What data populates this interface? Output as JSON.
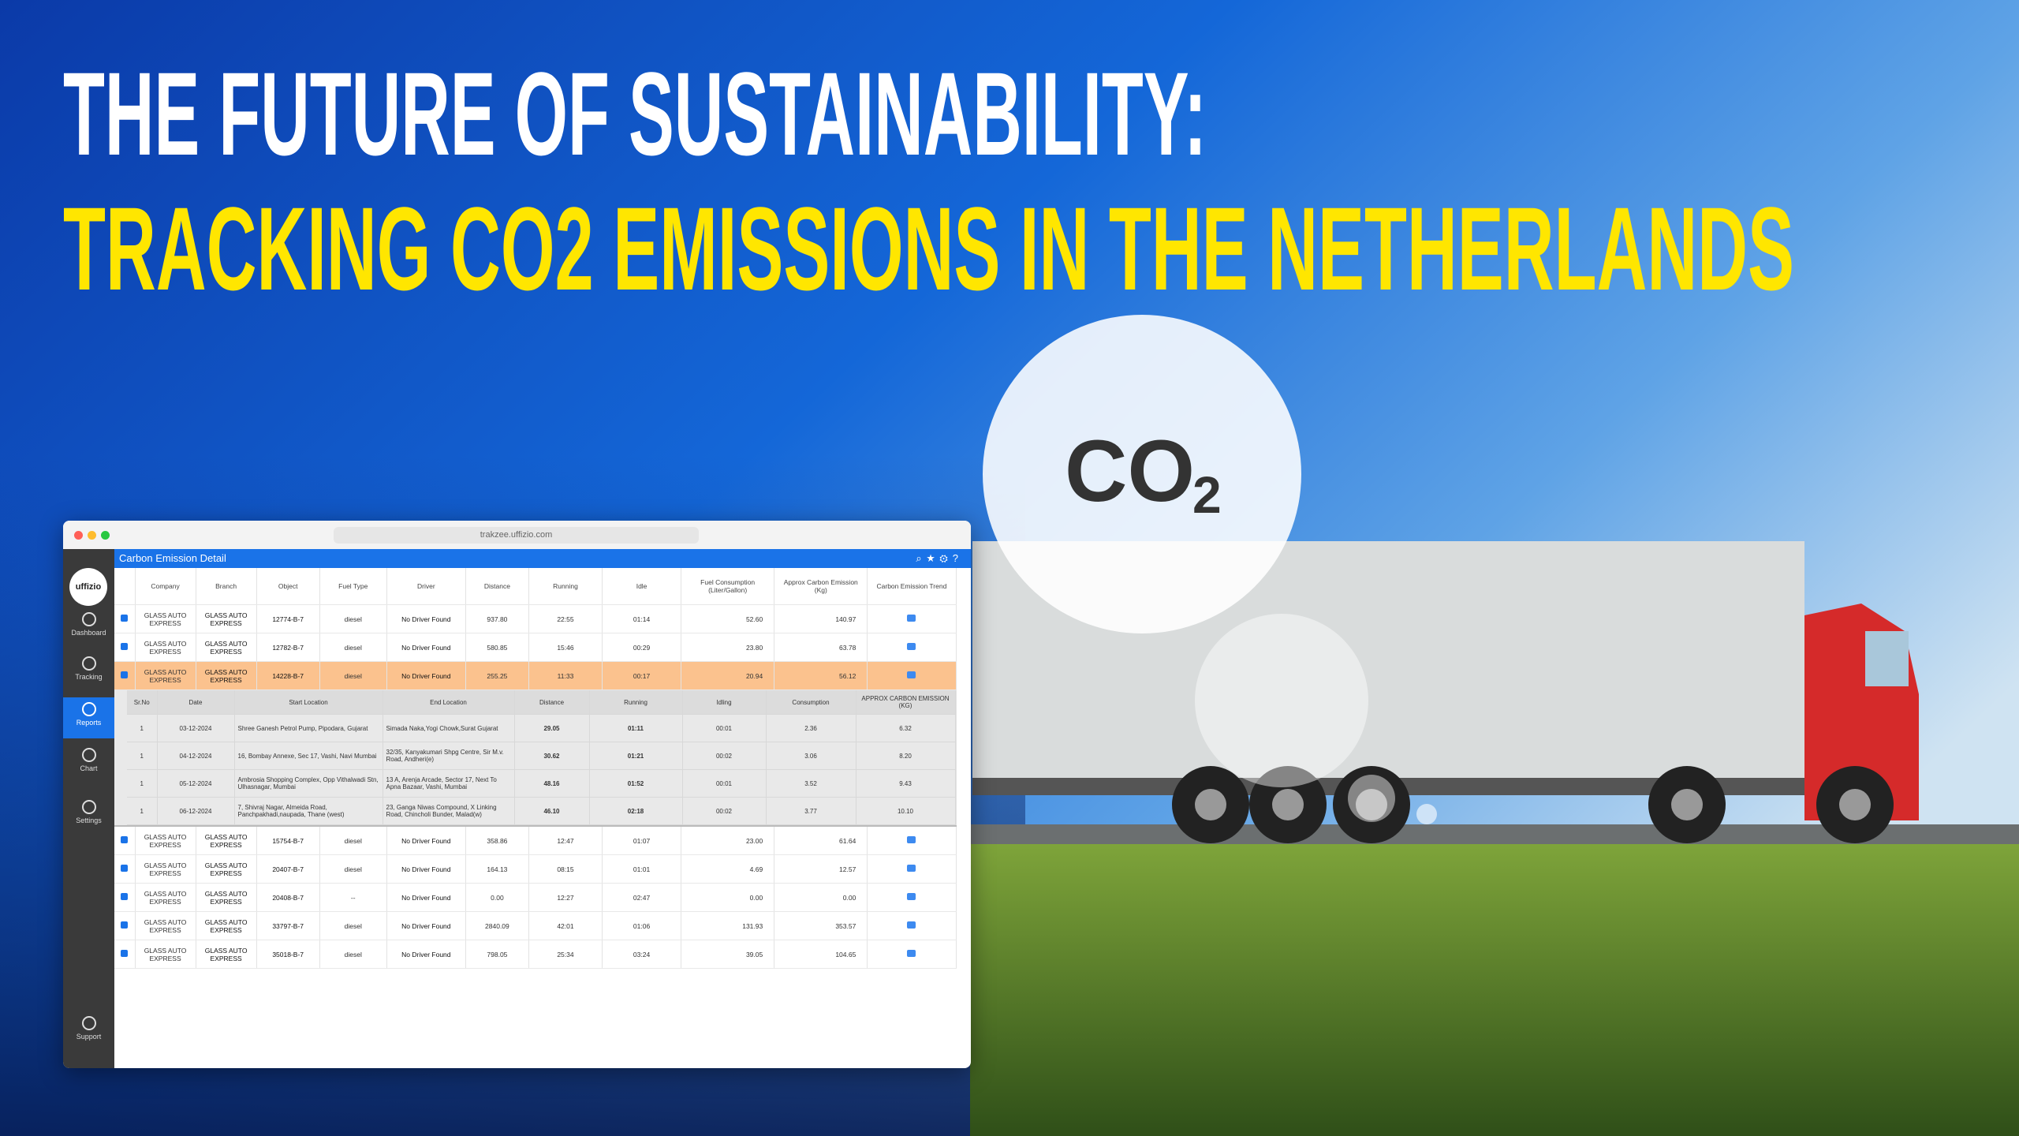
{
  "title": {
    "line1": "THE FUTURE OF SUSTAINABILITY:",
    "line2": "TRACKING CO2 EMISSIONS IN THE NETHERLANDS"
  },
  "co2_badge": {
    "main": "CO",
    "sub": "2"
  },
  "browser": {
    "url": "trakzee.uffizio.com"
  },
  "sidebar": {
    "logo": "uffizio",
    "items": [
      "Dashboard",
      "Tracking",
      "Reports",
      "Chart",
      "Settings",
      "Support"
    ]
  },
  "report": {
    "title": "Carbon Emission Detail",
    "columns": [
      "Company",
      "Branch",
      "Object",
      "Fuel Type",
      "Driver",
      "Distance",
      "Running",
      "Idle",
      "Fuel Consumption (Liter/Gallon)",
      "Approx Carbon Emission (Kg)",
      "Carbon Emission Trend"
    ],
    "rows_top": [
      [
        "GLASS AUTO EXPRESS",
        "GLASS AUTO EXPRESS",
        "12774-B-7",
        "diesel",
        "No Driver Found",
        "937.80",
        "22:55",
        "01:14",
        "52.60",
        "140.97"
      ],
      [
        "GLASS AUTO EXPRESS",
        "GLASS AUTO EXPRESS",
        "12782-B-7",
        "diesel",
        "No Driver Found",
        "580.85",
        "15:46",
        "00:29",
        "23.80",
        "63.78"
      ],
      [
        "GLASS AUTO EXPRESS",
        "GLASS AUTO EXPRESS",
        "14228-B-7",
        "diesel",
        "No Driver Found",
        "255.25",
        "11:33",
        "00:17",
        "20.94",
        "56.12"
      ]
    ],
    "detail": {
      "columns": [
        "Sr.No",
        "Date",
        "Start Location",
        "End Location",
        "Distance",
        "Running",
        "Idling",
        "Consumption",
        "APPROX CARBON EMISSION (KG)"
      ],
      "rows": [
        [
          "1",
          "03-12-2024",
          "Shree Ganesh Petrol Pump, Pipodara, Gujarat",
          "Simada Naka,Yogi Chowk,Surat Gujarat",
          "29.05",
          "01:11",
          "00:01",
          "2.36",
          "6.32"
        ],
        [
          "1",
          "04-12-2024",
          "16, Bombay Annexe, Sec 17, Vashi, Navi Mumbai",
          "32/35, Kanyakumari Shpg Centre, Sir M.v. Road, Andheri(e)",
          "30.62",
          "01:21",
          "00:02",
          "3.06",
          "8.20"
        ],
        [
          "1",
          "05-12-2024",
          "Ambrosia Shopping Complex, Opp Vithalwadi Stn, Ulhasnagar, Mumbai",
          "13 A, Arenja Arcade, Sector 17, Next To Apna Bazaar, Vashi, Mumbai",
          "48.16",
          "01:52",
          "00:01",
          "3.52",
          "9.43"
        ],
        [
          "1",
          "06-12-2024",
          "7, Shivraj Nagar, Almeida Road, Panchpakhadi,naupada, Thane (west)",
          "23, Ganga Niwas Compound, X Linking Road, Chincholi Bunder, Malad(w)",
          "46.10",
          "02:18",
          "00:02",
          "3.77",
          "10.10"
        ]
      ]
    },
    "rows_bottom": [
      [
        "GLASS AUTO EXPRESS",
        "GLASS AUTO EXPRESS",
        "15754-B-7",
        "diesel",
        "No Driver Found",
        "358.86",
        "12:47",
        "01:07",
        "23.00",
        "61.64"
      ],
      [
        "GLASS AUTO EXPRESS",
        "GLASS AUTO EXPRESS",
        "20407-B-7",
        "diesel",
        "No Driver Found",
        "164.13",
        "08:15",
        "01:01",
        "4.69",
        "12.57"
      ],
      [
        "GLASS AUTO EXPRESS",
        "GLASS AUTO EXPRESS",
        "20408-B-7",
        "--",
        "No Driver Found",
        "0.00",
        "12:27",
        "02:47",
        "0.00",
        "0.00"
      ],
      [
        "GLASS AUTO EXPRESS",
        "GLASS AUTO EXPRESS",
        "33797-B-7",
        "diesel",
        "No Driver Found",
        "2840.09",
        "42:01",
        "01:06",
        "131.93",
        "353.57"
      ],
      [
        "GLASS AUTO EXPRESS",
        "GLASS AUTO EXPRESS",
        "35018-B-7",
        "diesel",
        "No Driver Found",
        "798.05",
        "25:34",
        "03:24",
        "39.05",
        "104.65"
      ]
    ]
  }
}
